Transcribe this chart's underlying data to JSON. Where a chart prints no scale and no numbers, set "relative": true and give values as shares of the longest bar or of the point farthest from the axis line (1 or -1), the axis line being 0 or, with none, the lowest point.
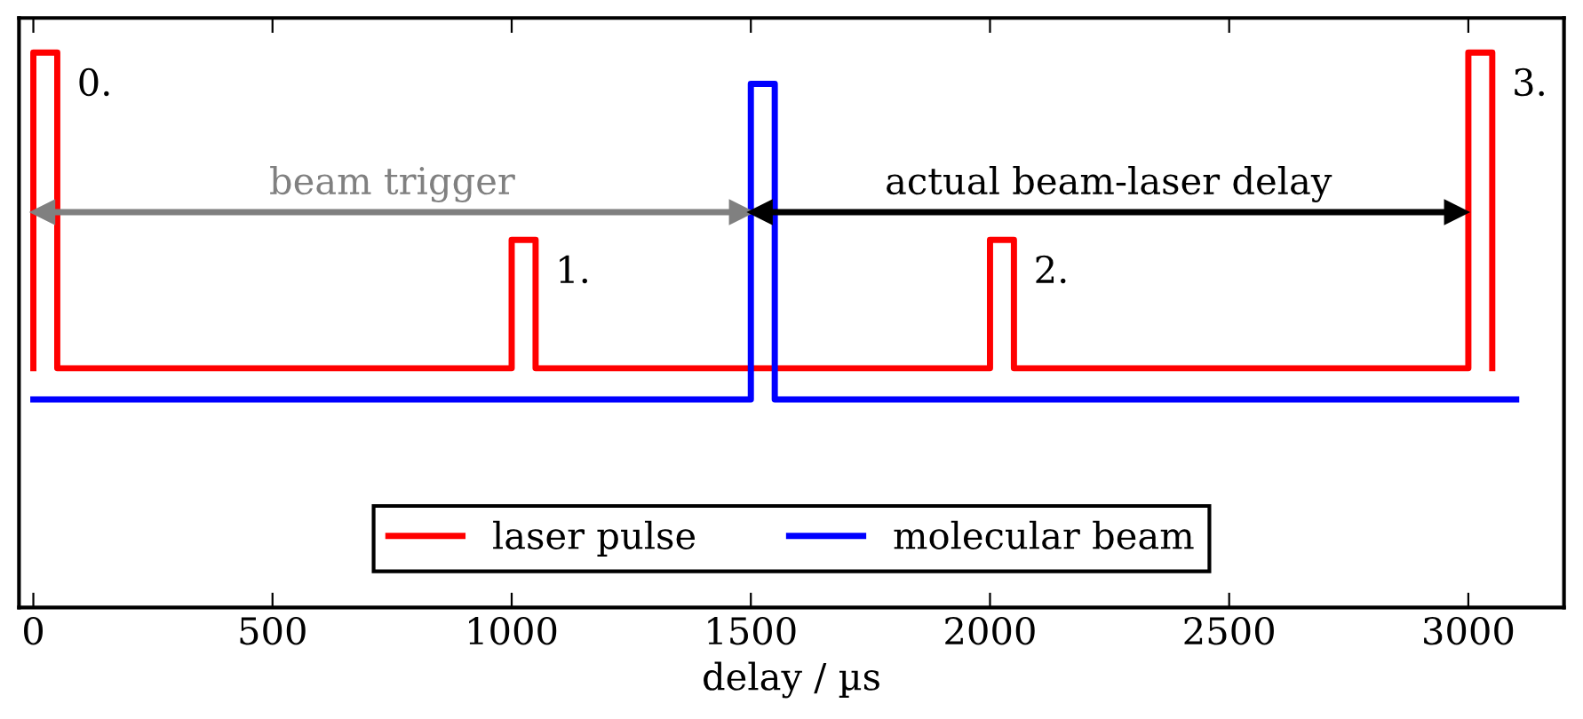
{
  "chart_data": {
    "type": "line",
    "xlabel": "delay / µs",
    "relative": true,
    "tick_labels": "x",
    "grid": false,
    "legend": "bottom",
    "line_style": "solid",
    "xlim": [
      -30,
      3200
    ],
    "xticks": [
      0,
      500,
      1000,
      1500,
      2000,
      2500,
      3000
    ],
    "series": [
      {
        "name": "laser pulse",
        "color": "#ff0000",
        "x": [
          0,
          0,
          50,
          50,
          1000,
          1000,
          1050,
          1050,
          2000,
          2000,
          2050,
          2050,
          3000,
          3000,
          3050,
          3050
        ],
        "values": [
          0.09,
          1,
          1,
          0.09,
          0.09,
          0.46,
          0.46,
          0.09,
          0.09,
          0.46,
          0.46,
          0.09,
          0.09,
          1,
          1,
          0.09
        ]
      },
      {
        "name": "molecular beam",
        "color": "#0000ff",
        "x": [
          0,
          1500,
          1500,
          1550,
          1550,
          3100
        ],
        "values": [
          0,
          0,
          0.91,
          0.91,
          0,
          0
        ]
      },
      {
        "color": "#808080",
        "marker": "triangle",
        "x": [
          20,
          1480
        ],
        "values": [
          0.54,
          0.54
        ]
      },
      {
        "color": "#000000",
        "marker": "triangle",
        "x": [
          1520,
          2975
        ],
        "values": [
          0.54,
          0.54
        ]
      }
    ],
    "annotations": [
      "beam trigger",
      "actual beam-laser delay",
      "0.",
      "1.",
      "2.",
      "3."
    ]
  }
}
